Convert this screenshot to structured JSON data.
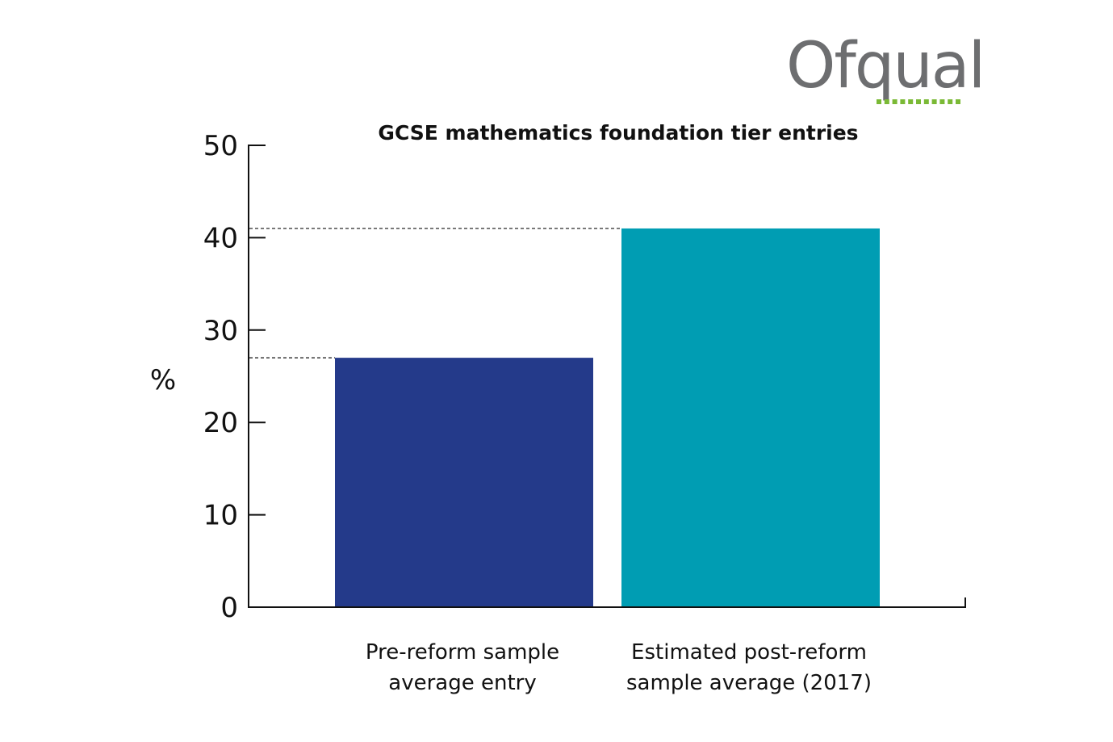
{
  "logo": {
    "text": "Ofqual",
    "text_color": "#6d6e70",
    "accent_color": "#7ab935"
  },
  "chart_data": {
    "type": "bar",
    "title": "GCSE mathematics foundation tier entries",
    "ylabel": "%",
    "xlabel": "",
    "ylim": [
      0,
      50
    ],
    "yticks": [
      0,
      10,
      20,
      30,
      40,
      50
    ],
    "grid": false,
    "categories": [
      [
        "Pre-reform sample",
        "average entry"
      ],
      [
        "Estimated post-reform",
        "sample average (2017)"
      ]
    ],
    "values": [
      27,
      41
    ],
    "colors": [
      "#243a8a",
      "#009db3"
    ],
    "reference_lines": "dashed lines from y-axis to each bar top"
  }
}
